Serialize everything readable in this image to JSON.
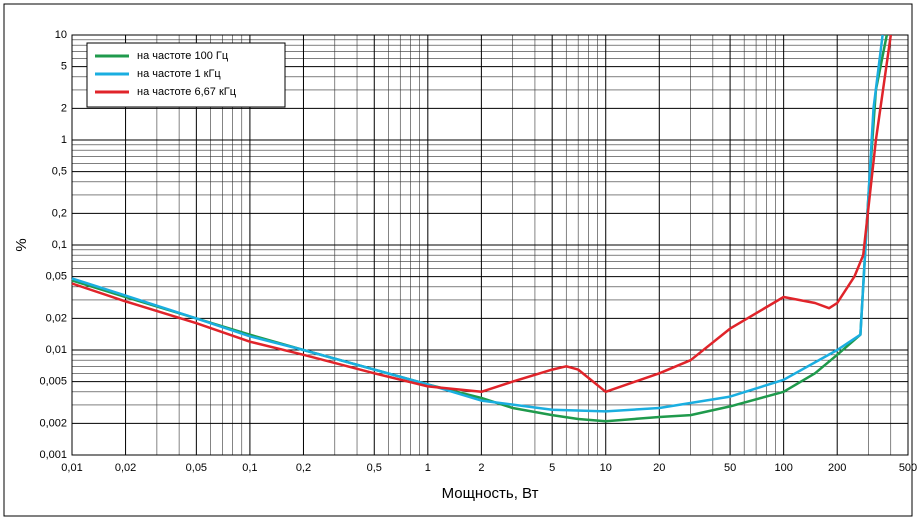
{
  "chart_data": {
    "type": "line",
    "log_x": true,
    "log_y": true,
    "grid": true,
    "ylabel": "%",
    "xlabel": "Мощность, Вт",
    "legend": "upper left",
    "xlim": [
      0.01,
      500
    ],
    "ylim": [
      0.001,
      10
    ],
    "xticks": [
      {
        "value": 0.01,
        "label": "0,01"
      },
      {
        "value": 0.02,
        "label": "0,02"
      },
      {
        "value": 0.05,
        "label": "0,05"
      },
      {
        "value": 0.1,
        "label": "0,1"
      },
      {
        "value": 0.2,
        "label": "0,2"
      },
      {
        "value": 0.5,
        "label": "0,5"
      },
      1,
      2,
      5,
      10,
      20,
      50,
      100,
      200,
      500
    ],
    "yticks": [
      {
        "value": 0.001,
        "label": "0,001"
      },
      {
        "value": 0.002,
        "label": "0,002"
      },
      {
        "value": 0.005,
        "label": "0,005"
      },
      {
        "value": 0.01,
        "label": "0,01"
      },
      {
        "value": 0.02,
        "label": "0,02"
      },
      {
        "value": 0.05,
        "label": "0,05"
      },
      {
        "value": 0.1,
        "label": "0,1"
      },
      {
        "value": 0.2,
        "label": "0,2"
      },
      {
        "value": 0.5,
        "label": "0,5"
      },
      1,
      2,
      5,
      10
    ],
    "xminor_ticks": [
      0.03,
      0.04,
      0.06,
      0.07,
      0.08,
      0.09,
      0.3,
      0.4,
      0.6,
      0.7,
      0.8,
      0.9,
      3,
      4,
      6,
      7,
      8,
      9,
      30,
      40,
      60,
      70,
      80,
      90,
      300,
      400
    ],
    "yminor_ticks": [
      0.003,
      0.004,
      0.006,
      0.007,
      0.008,
      0.009,
      0.03,
      0.04,
      0.06,
      0.07,
      0.08,
      0.09,
      0.3,
      0.4,
      0.6,
      0.7,
      0.8,
      0.9,
      3,
      4,
      6,
      7,
      8,
      9
    ],
    "series": [
      {
        "name": "на частоте 100 Гц",
        "color": "#1f9a4c",
        "x": [
          0.01,
          0.02,
          0.05,
          0.1,
          0.2,
          0.5,
          1,
          2,
          3,
          5,
          7,
          10,
          20,
          30,
          50,
          100,
          150,
          200,
          270,
          300,
          330,
          380
        ],
        "values": [
          0.046,
          0.032,
          0.02,
          0.014,
          0.01,
          0.0065,
          0.0047,
          0.0035,
          0.0028,
          0.0024,
          0.0022,
          0.0021,
          0.0023,
          0.0024,
          0.0029,
          0.004,
          0.006,
          0.009,
          0.014,
          0.3,
          3,
          10
        ]
      },
      {
        "name": "на частоте 1 кГц",
        "color": "#1aaee0",
        "x": [
          0.01,
          0.02,
          0.05,
          0.1,
          0.2,
          0.5,
          1,
          2,
          5,
          10,
          20,
          50,
          100,
          200,
          270,
          320,
          360
        ],
        "values": [
          0.048,
          0.033,
          0.02,
          0.0135,
          0.01,
          0.0065,
          0.0047,
          0.0033,
          0.0027,
          0.0026,
          0.0028,
          0.0036,
          0.0052,
          0.01,
          0.014,
          2,
          10
        ]
      },
      {
        "name": "на частоте 6,67 кГц",
        "color": "#e0242a",
        "x": [
          0.01,
          0.02,
          0.05,
          0.1,
          0.2,
          0.5,
          1,
          2,
          3,
          5,
          6,
          7,
          10,
          20,
          30,
          50,
          100,
          150,
          180,
          200,
          250,
          280,
          330,
          400
        ],
        "values": [
          0.043,
          0.029,
          0.018,
          0.012,
          0.009,
          0.006,
          0.0045,
          0.004,
          0.005,
          0.0065,
          0.007,
          0.0065,
          0.004,
          0.006,
          0.008,
          0.016,
          0.032,
          0.028,
          0.025,
          0.028,
          0.05,
          0.08,
          1,
          10
        ]
      }
    ]
  }
}
